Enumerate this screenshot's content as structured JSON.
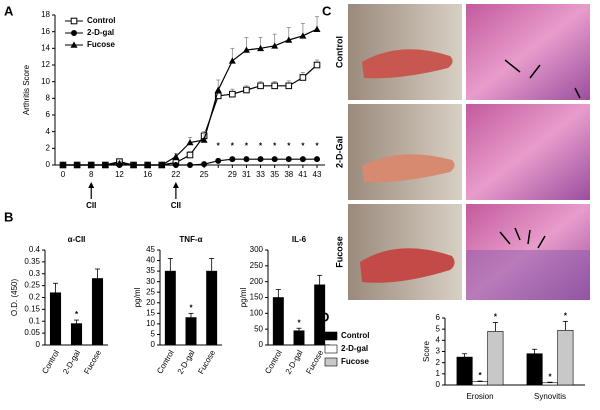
{
  "chart_data": [
    {
      "type": "line",
      "panel": "A",
      "ylabel": "Arthritis Score",
      "legend": "upper left",
      "categories": [
        "0",
        null,
        "8",
        null,
        "12",
        null,
        "16",
        null,
        "22",
        null,
        "25",
        null,
        "29",
        "31",
        "33",
        "35",
        "38",
        "41",
        "43"
      ],
      "series": [
        {
          "name": "Control",
          "color": "#000000",
          "marker": "open-square",
          "values": [
            0,
            0,
            0,
            0,
            0.4,
            0,
            0,
            0,
            0.3,
            1.2,
            3.5,
            8.3,
            8.5,
            9,
            9.5,
            9.5,
            9.5,
            10.5,
            12
          ],
          "errors": [
            0,
            0,
            0,
            0,
            0.2,
            0,
            0,
            0,
            0.2,
            0.4,
            0.5,
            0.6,
            0.6,
            0.5,
            0.5,
            0.5,
            0.6,
            0.6,
            0.6
          ]
        },
        {
          "name": "2-D-gal",
          "color": "#000000",
          "marker": "circle",
          "values": [
            0,
            0,
            0,
            0,
            0,
            0,
            0,
            0,
            0,
            0,
            0.1,
            0.5,
            0.7,
            0.7,
            0.7,
            0.7,
            0.7,
            0.7,
            0.7
          ],
          "errors": [
            0,
            0,
            0,
            0,
            0,
            0,
            0,
            0,
            0,
            0,
            0,
            0,
            0,
            0,
            0,
            0,
            0,
            0,
            0
          ]
        },
        {
          "name": "Fucose",
          "color": "#000000",
          "marker": "triangle",
          "values": [
            0,
            0,
            0,
            0,
            0.2,
            0,
            0,
            0,
            1,
            2.7,
            3,
            9,
            12.5,
            13.8,
            14,
            14.3,
            15,
            15.5,
            16.3
          ],
          "errors": [
            0,
            0,
            0,
            0,
            0.2,
            0,
            0,
            0,
            0.4,
            0.6,
            0.8,
            1.2,
            1.5,
            1.5,
            1.3,
            1.4,
            1.5,
            1.5,
            1.5
          ]
        }
      ],
      "ylim": [
        0,
        18
      ],
      "yticks": [
        0,
        2,
        4,
        6,
        8,
        10,
        12,
        14,
        16,
        18
      ],
      "annotations": [
        {
          "index": 11,
          "y": 2.5,
          "text": "*"
        },
        {
          "index": 12,
          "y": 2.5,
          "text": "*"
        },
        {
          "index": 13,
          "y": 2.5,
          "text": "*"
        },
        {
          "index": 14,
          "y": 2.5,
          "text": "*"
        },
        {
          "index": 15,
          "y": 2.5,
          "text": "*"
        },
        {
          "index": 16,
          "y": 2.5,
          "text": "*"
        },
        {
          "index": 17,
          "y": 2.5,
          "text": "*"
        },
        {
          "index": 18,
          "y": 2.5,
          "text": "*"
        }
      ],
      "arrows": [
        {
          "index": 2,
          "text": "CII"
        },
        {
          "index": 8,
          "text": "CII"
        }
      ]
    },
    {
      "type": "bar",
      "panel": "B",
      "title": "α-CII",
      "ylabel": "O.D. (450)",
      "categories": [
        "Control",
        "2-D-gal",
        "Fucose"
      ],
      "values": [
        0.22,
        0.09,
        0.28
      ],
      "errors": [
        0.04,
        0.015,
        0.04
      ],
      "color": "#000000",
      "ylim": [
        0,
        0.4
      ],
      "yticks": [
        0,
        0.05,
        0.1,
        0.15,
        0.2,
        0.25,
        0.3,
        0.35,
        0.4
      ],
      "annotations": [
        {
          "index": 1,
          "text": "*"
        }
      ]
    },
    {
      "type": "bar",
      "title": "TNF-α",
      "ylabel": "pg/ml",
      "categories": [
        "Control",
        "2-D-gal",
        "Fucose"
      ],
      "values": [
        35,
        13,
        35
      ],
      "errors": [
        6,
        2,
        6
      ],
      "color": "#000000",
      "ylim": [
        0,
        45
      ],
      "yticks": [
        0,
        5,
        10,
        15,
        20,
        25,
        30,
        35,
        40,
        45
      ],
      "annotations": [
        {
          "index": 1,
          "text": "*"
        }
      ]
    },
    {
      "type": "bar",
      "title": "IL-6",
      "ylabel": "pg/ml",
      "categories": [
        "Control",
        "2-D-gal",
        "Fucose"
      ],
      "values": [
        150,
        45,
        190
      ],
      "errors": [
        25,
        8,
        30
      ],
      "color": "#000000",
      "ylim": [
        0,
        300
      ],
      "yticks": [
        0,
        50,
        100,
        150,
        200,
        250,
        300
      ],
      "annotations": [
        {
          "index": 1,
          "text": "*"
        }
      ]
    },
    {
      "type": "bar",
      "panel": "D",
      "ylabel": "Score",
      "legend": "left",
      "categories": [
        "Erosion",
        "Synovitis"
      ],
      "series": [
        {
          "name": "Control",
          "color": "#000000",
          "values": [
            2.5,
            2.8
          ],
          "errors": [
            0.3,
            0.4
          ]
        },
        {
          "name": "2-D-gal",
          "color": "#ffffff",
          "values": [
            0.3,
            0.2
          ],
          "errors": [
            0.05,
            0.05
          ]
        },
        {
          "name": "Fucose",
          "color": "#c8c8c8",
          "values": [
            4.8,
            4.9
          ],
          "errors": [
            0.8,
            0.8
          ]
        }
      ],
      "ylim": [
        0,
        6
      ],
      "yticks": [
        0,
        1,
        2,
        3,
        4,
        5,
        6
      ],
      "annotations": [
        {
          "series": 1,
          "index": 0,
          "text": "*"
        },
        {
          "series": 2,
          "index": 0,
          "text": "*"
        },
        {
          "series": 1,
          "index": 1,
          "text": "*"
        },
        {
          "series": 2,
          "index": 1,
          "text": "*"
        }
      ]
    }
  ],
  "panel_c": {
    "panel": "C",
    "rows": [
      "Control",
      "2-D-Gal",
      "Fucose"
    ]
  }
}
